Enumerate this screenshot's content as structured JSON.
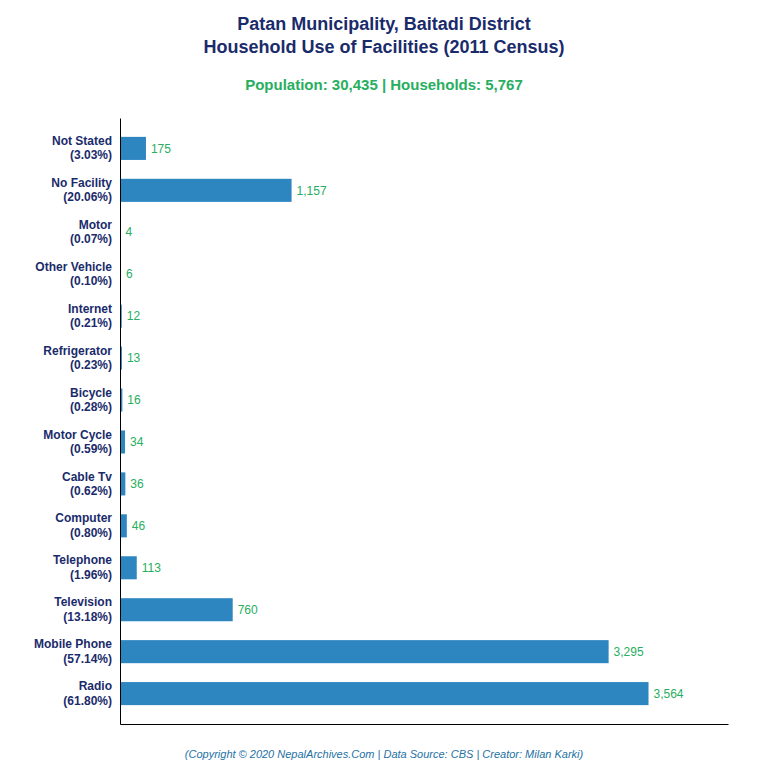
{
  "chart_data": {
    "type": "bar",
    "orientation": "horizontal",
    "title": "Patan Municipality, Baitadi District\nHousehold Use of Facilities (2011 Census)",
    "subtitle": "Population: 30,435 | Households: 5,767",
    "annotations": [
      "(Copyright © 2020 NepalArchives.Com | Data Source: CBS | Creator: Milan Karki)"
    ],
    "categories": [
      "Radio\n(61.80%)",
      "Mobile Phone\n(57.14%)",
      "Television\n(13.18%)",
      "Telephone\n(1.96%)",
      "Computer\n(0.80%)",
      "Cable Tv\n(0.62%)",
      "Motor Cycle\n(0.59%)",
      "Bicycle\n(0.28%)",
      "Refrigerator\n(0.23%)",
      "Internet\n(0.21%)",
      "Other Vehicle\n(0.10%)",
      "Motor\n(0.07%)",
      "No Facility\n(20.06%)",
      "Not Stated\n(3.03%)"
    ],
    "values": [
      3564,
      3295,
      760,
      113,
      46,
      36,
      34,
      16,
      13,
      12,
      6,
      4,
      1157,
      175
    ],
    "value_labels": [
      "3,564",
      "3,295",
      "760",
      "113",
      "46",
      "36",
      "34",
      "16",
      "13",
      "12",
      "6",
      "4",
      "1,157",
      "175"
    ],
    "color": "#2e86c1",
    "xlim": [
      0,
      4100
    ],
    "data_labels": true,
    "tick_labels": "y",
    "grid": false
  }
}
